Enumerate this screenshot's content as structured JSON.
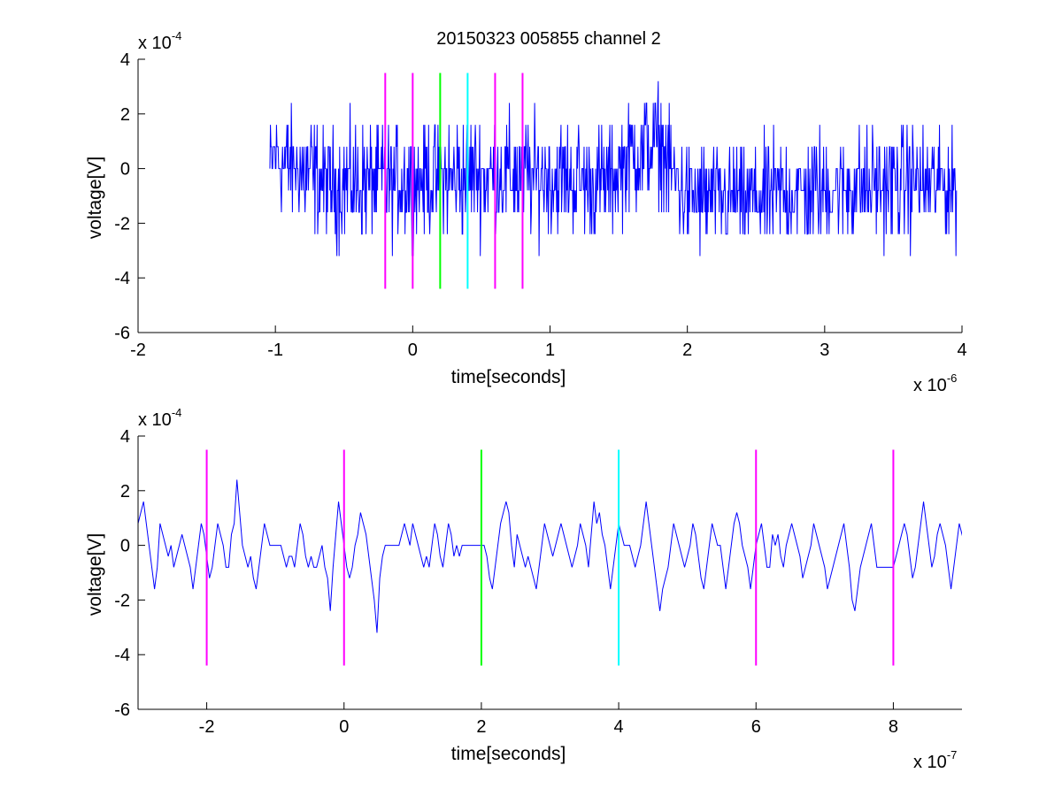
{
  "figure": {
    "title": "20150323 005855 channel 2"
  },
  "chart_data": [
    {
      "type": "line",
      "title": "20150323 005855 channel 2",
      "xlabel": "time[seconds]",
      "ylabel": "voltage[V]",
      "x_exponent_label": "x 10",
      "x_exponent": "-6",
      "y_exponent_label": "x 10",
      "y_exponent": "-4",
      "xlim": [
        -2,
        4
      ],
      "ylim": [
        -6,
        4
      ],
      "x_ticks": [
        -2,
        -1,
        0,
        1,
        2,
        3,
        4
      ],
      "y_ticks": [
        -6,
        -4,
        -2,
        0,
        2,
        4
      ],
      "grid": false,
      "series": [
        {
          "color": "#0000ff",
          "quantization_step": 0.8,
          "x_start": -1.04,
          "x_end": 3.96,
          "x_step": 0.004,
          "y_range": [
            -4.0,
            3.2
          ],
          "envelope_x": [
            -1.04,
            -1.0,
            -0.6,
            -0.2,
            0.2,
            0.6,
            1.0,
            1.4,
            1.6,
            1.8,
            2.0,
            2.4,
            2.8,
            3.2,
            3.6,
            3.96
          ],
          "envelope_mean": [
            0.0,
            0.4,
            -0.6,
            -0.5,
            -0.3,
            -0.2,
            -0.3,
            -0.6,
            0.6,
            0.8,
            -1.1,
            -1.1,
            -0.9,
            -0.7,
            -0.5,
            -0.6
          ]
        }
      ],
      "markers": [
        {
          "x": -0.2,
          "color": "#ff00ff",
          "y_range": [
            -4.4,
            3.5
          ]
        },
        {
          "x": 0.0,
          "color": "#ff00ff",
          "y_range": [
            -4.4,
            3.5
          ]
        },
        {
          "x": 0.2,
          "color": "#00ff00",
          "y_range": [
            -4.4,
            3.5
          ]
        },
        {
          "x": 0.4,
          "color": "#00ffff",
          "y_range": [
            -4.4,
            3.5
          ]
        },
        {
          "x": 0.6,
          "color": "#ff00ff",
          "y_range": [
            -4.4,
            3.5
          ]
        },
        {
          "x": 0.8,
          "color": "#ff00ff",
          "y_range": [
            -4.4,
            3.5
          ]
        }
      ]
    },
    {
      "type": "line",
      "title": "",
      "xlabel": "time[seconds]",
      "ylabel": "voltage[V]",
      "x_exponent_label": "x 10",
      "x_exponent": "-7",
      "y_exponent_label": "x 10",
      "y_exponent": "-4",
      "xlim": [
        -3,
        9
      ],
      "ylim": [
        -6,
        4
      ],
      "x_ticks": [
        -2,
        0,
        2,
        4,
        6,
        8
      ],
      "y_ticks": [
        -6,
        -4,
        -2,
        0,
        2,
        4
      ],
      "grid": false,
      "series": [
        {
          "color": "#0000ff",
          "x_start": -3.0,
          "x_step": 0.04,
          "y": [
            0.8,
            1.2,
            1.6,
            0.8,
            0.0,
            -0.8,
            -1.6,
            -0.8,
            0.8,
            0.4,
            0.0,
            -0.4,
            0.0,
            -0.8,
            -0.4,
            0.0,
            0.4,
            0.0,
            -0.4,
            -0.8,
            -1.6,
            -0.8,
            0.0,
            0.8,
            0.4,
            -0.4,
            -1.2,
            -0.8,
            0.0,
            0.8,
            0.4,
            0.0,
            -0.8,
            -0.8,
            0.4,
            0.8,
            2.4,
            1.2,
            0.0,
            -0.4,
            -0.8,
            -0.4,
            -1.2,
            -1.6,
            -0.8,
            0.0,
            0.8,
            0.4,
            0.0,
            0.0,
            0.0,
            0.0,
            0.0,
            -0.4,
            -0.8,
            -0.4,
            -0.4,
            -0.8,
            0.0,
            0.8,
            0.4,
            -0.4,
            -0.8,
            -0.4,
            -0.8,
            -0.8,
            -0.4,
            0.0,
            -0.8,
            -1.2,
            -2.4,
            -0.8,
            0.4,
            1.6,
            0.8,
            0.0,
            -0.8,
            -1.2,
            -0.8,
            0.0,
            0.4,
            1.2,
            0.8,
            0.4,
            -0.4,
            -1.2,
            -2.0,
            -3.2,
            -1.2,
            -0.4,
            0.0,
            0.0,
            0.0,
            0.0,
            0.0,
            0.0,
            0.4,
            0.8,
            0.4,
            0.0,
            0.8,
            0.4,
            0.0,
            -0.4,
            -0.8,
            -0.4,
            -0.8,
            0.0,
            0.8,
            0.4,
            -0.4,
            -0.8,
            0.0,
            0.8,
            0.4,
            -0.4,
            0.0,
            -0.4,
            0.0,
            0.0,
            0.0,
            0.0,
            0.0,
            0.0,
            0.0,
            0.0,
            0.0,
            -0.4,
            -1.2,
            -1.6,
            -0.8,
            0.0,
            0.8,
            1.2,
            1.6,
            1.2,
            0.0,
            -0.8,
            0.4,
            0.0,
            -0.4,
            -0.8,
            -0.4,
            -0.8,
            -1.2,
            -1.6,
            -0.8,
            0.0,
            0.8,
            0.4,
            0.0,
            -0.4,
            0.0,
            0.4,
            0.8,
            0.4,
            0.0,
            -0.4,
            -0.8,
            -0.4,
            0.0,
            0.8,
            0.4,
            0.0,
            -0.8,
            0.4,
            1.6,
            0.8,
            1.2,
            0.4,
            0.0,
            -0.8,
            -1.6,
            -0.8,
            0.0,
            0.8,
            0.4,
            0.0,
            0.0,
            0.0,
            -0.4,
            -0.8,
            -0.4,
            0.0,
            0.8,
            1.6,
            0.8,
            0.0,
            -0.8,
            -1.6,
            -2.4,
            -1.6,
            -1.2,
            -0.8,
            0.0,
            0.8,
            0.4,
            0.0,
            -0.4,
            -0.8,
            -0.4,
            0.0,
            0.8,
            0.4,
            -0.4,
            -1.2,
            -1.6,
            -0.8,
            0.0,
            0.8,
            0.4,
            0.0,
            0.0,
            -0.8,
            -1.6,
            -0.8,
            0.0,
            0.8,
            1.2,
            0.8,
            0.0,
            -0.4,
            -0.8,
            -1.6,
            -0.8,
            0.0,
            0.4,
            0.8,
            0.0,
            -0.8,
            -0.8,
            0.4,
            0.0,
            0.4,
            -0.4,
            -0.8,
            0.0,
            0.4,
            0.8,
            0.4,
            0.0,
            -0.4,
            -1.2,
            -0.8,
            -0.4,
            0.0,
            0.8,
            0.4,
            0.0,
            -0.4,
            -0.8,
            -1.6,
            -1.2,
            -0.8,
            -0.4,
            0.0,
            0.4,
            0.8,
            0.0,
            -0.8,
            -2.0,
            -2.4,
            -1.6,
            -0.8,
            -0.4,
            0.0,
            0.4,
            0.8,
            0.0,
            -0.8,
            -0.8,
            -0.8,
            -0.8,
            -0.8,
            -0.8,
            -0.8,
            -0.4,
            0.0,
            0.4,
            0.8,
            0.4,
            -0.4,
            -1.2,
            -0.8,
            0.0,
            0.8,
            1.6,
            0.8,
            0.0,
            -0.8,
            -0.4,
            0.4,
            0.8,
            0.4,
            0.0,
            -0.8,
            -1.6,
            -0.8,
            0.0,
            0.8,
            0.4,
            0.0,
            -0.4,
            -0.8,
            -1.2,
            -0.8,
            -0.4,
            0.0,
            0.8,
            0.4,
            0.0,
            -0.4,
            -0.8,
            -0.8,
            -0.4,
            -0.8,
            -1.6,
            -0.8,
            0.0,
            0.8,
            1.6,
            1.2,
            0.8,
            0.4,
            0.0,
            -0.8,
            -1.2,
            -2.0,
            -1.2,
            -0.4,
            0.0,
            0.4,
            -0.8,
            -1.6,
            -0.8,
            0.0,
            0.8,
            0.4,
            0.0,
            -0.4,
            -0.8,
            -0.4,
            0.0,
            0.8,
            1.6,
            1.2,
            0.8,
            0.0,
            -0.4,
            -0.8,
            -1.2,
            -1.6,
            -0.8,
            0.0,
            0.8,
            1.6,
            0.8,
            0.0,
            -0.8,
            -1.6,
            -2.4,
            -1.6,
            -0.8,
            0.0,
            0.4,
            -0.8,
            -0.4,
            0.0,
            0.8,
            1.2,
            0.4,
            -0.4,
            -0.8,
            -0.4,
            0.0,
            0.4,
            1.2,
            1.6,
            2.4,
            1.6,
            0.8,
            0.4,
            0.0,
            -0.4,
            -0.8,
            -1.6,
            -0.8,
            0.0,
            0.4,
            0.8,
            0.4,
            0.0,
            -0.8,
            -1.2,
            -1.6,
            -0.8,
            0.0,
            0.8,
            0.4,
            0.0,
            0.8,
            0.8,
            0.8,
            0.8,
            0.4,
            0.0,
            0.8,
            0.4,
            -0.4,
            -0.8,
            -0.4,
            0.0,
            -0.8,
            -0.4,
            0.0,
            0.0,
            0.0,
            -0.4,
            0.0,
            0.4,
            0.0,
            -0.8,
            -1.6,
            -1.2,
            -0.8,
            -0.4,
            0.0,
            0.4,
            0.0,
            -0.4,
            -0.8,
            -1.6,
            -2.4,
            -1.6,
            -0.8,
            0.0,
            0.8,
            0.4,
            0.0,
            -0.8,
            -1.2,
            -0.8,
            -0.4,
            0.0,
            0.0,
            0.4,
            0.8,
            0.8,
            0.8,
            0.8,
            0.4,
            0.0,
            -0.8,
            -1.2,
            -0.8,
            0.0,
            0.8,
            0.4,
            0.0,
            -0.4,
            -0.8,
            -1.6,
            -0.8,
            0.0,
            -0.4,
            -0.8,
            0.4,
            0.0,
            -0.8,
            -0.8,
            -0.8,
            -0.8,
            -0.8,
            -0.8,
            -0.8,
            -0.4,
            0.0,
            0.8,
            1.2,
            3.2,
            2.4,
            0.4,
            1.6,
            0.0,
            0.8,
            0.4,
            -0.4,
            -0.8,
            -0.4,
            0.0,
            0.4,
            0.8,
            0.4,
            0.0,
            -0.4,
            -0.8,
            -1.6,
            -0.8,
            0.0,
            0.8,
            0.4,
            0.0,
            0.0,
            0.0,
            0.0,
            -0.4,
            -0.8,
            -0.4,
            0.0,
            0.4,
            0.8,
            0.4,
            -0.4,
            -0.8,
            -1.2,
            -0.8,
            0.0,
            0.8,
            0.4,
            0.0,
            0.0,
            0.0,
            0.0
          ]
        }
      ],
      "markers": [
        {
          "x": -2,
          "color": "#ff00ff",
          "y_range": [
            -4.4,
            3.5
          ]
        },
        {
          "x": 0,
          "color": "#ff00ff",
          "y_range": [
            -4.4,
            3.5
          ]
        },
        {
          "x": 2,
          "color": "#00ff00",
          "y_range": [
            -4.4,
            3.5
          ]
        },
        {
          "x": 4,
          "color": "#00ffff",
          "y_range": [
            -4.4,
            3.5
          ]
        },
        {
          "x": 6,
          "color": "#ff00ff",
          "y_range": [
            -4.4,
            3.5
          ]
        },
        {
          "x": 8,
          "color": "#ff00ff",
          "y_range": [
            -4.4,
            3.5
          ]
        }
      ]
    }
  ]
}
